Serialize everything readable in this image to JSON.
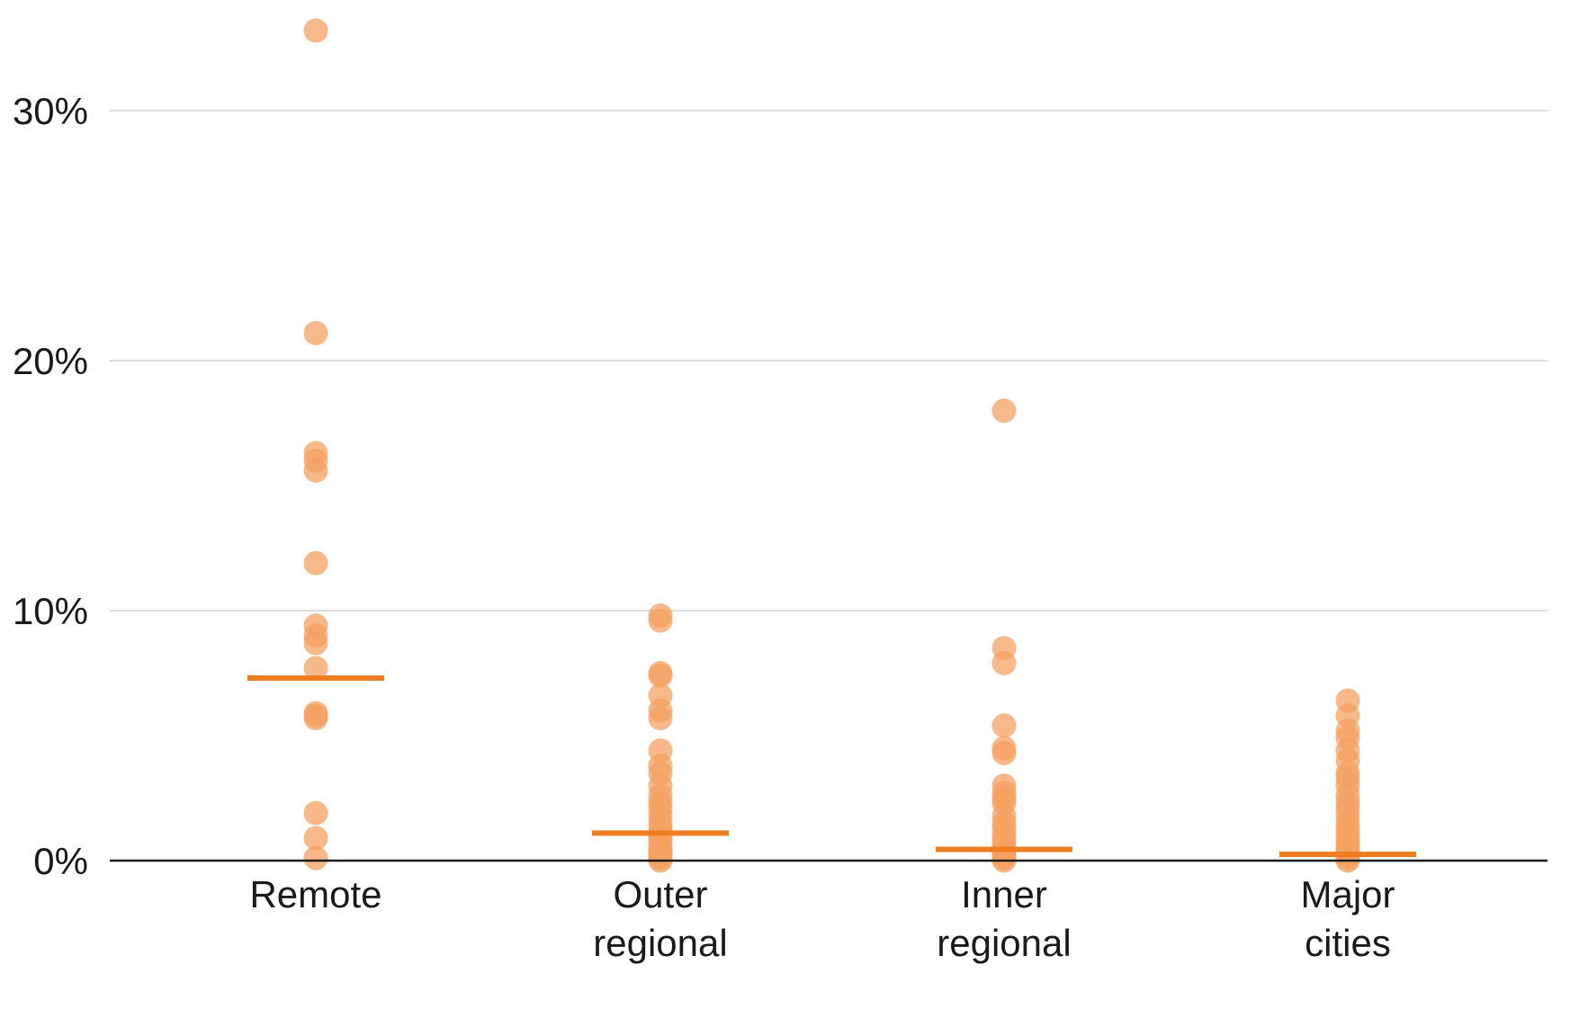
{
  "chart_data": {
    "type": "scatter",
    "title": "",
    "xlabel": "",
    "ylabel": "",
    "ylim": [
      0,
      33
    ],
    "y_ticks": [
      {
        "value": 0,
        "label": "0%"
      },
      {
        "value": 10,
        "label": "10%"
      },
      {
        "value": 20,
        "label": "20%"
      },
      {
        "value": 30,
        "label": "30%"
      }
    ],
    "grid": true,
    "legend": "none",
    "colors": {
      "point": "#f4a261",
      "mean": "#ee7d22",
      "axis": "#1a1a1a",
      "grid": "#d0d0d0"
    },
    "categories": [
      {
        "name": "Remote",
        "label_lines": [
          "Remote"
        ],
        "values": [
          33.2,
          21.1,
          16.3,
          16.0,
          15.6,
          11.9,
          9.4,
          9.0,
          8.7,
          7.7,
          5.9,
          5.8,
          5.7,
          1.9,
          0.9,
          0.1
        ],
        "mean": 7.3
      },
      {
        "name": "Outer regional",
        "label_lines": [
          "Outer",
          "regional"
        ],
        "values": [
          9.8,
          9.6,
          7.5,
          7.4,
          6.6,
          6.0,
          5.7,
          4.4,
          3.8,
          3.5,
          3.0,
          2.6,
          2.3,
          2.1,
          1.8,
          1.5,
          1.3,
          1.1,
          0.9,
          0.7,
          0.5,
          0.4,
          0.3,
          0.2,
          0.1,
          0.0
        ],
        "mean": 1.1
      },
      {
        "name": "Inner regional",
        "label_lines": [
          "Inner",
          "regional"
        ],
        "values": [
          18.0,
          8.5,
          7.9,
          5.4,
          4.5,
          4.3,
          3.0,
          2.7,
          2.5,
          2.3,
          1.8,
          1.5,
          1.3,
          1.0,
          0.8,
          0.6,
          0.4,
          0.3,
          0.2,
          0.1,
          0.0
        ],
        "mean": 0.45
      },
      {
        "name": "Major cities",
        "label_lines": [
          "Major",
          "cities"
        ],
        "values": [
          6.4,
          5.8,
          5.2,
          4.9,
          4.4,
          4.0,
          3.5,
          3.3,
          3.0,
          2.6,
          2.3,
          2.1,
          1.8,
          1.5,
          1.3,
          1.1,
          0.9,
          0.7,
          0.5,
          0.4,
          0.3,
          0.2,
          0.1,
          0.0
        ],
        "mean": 0.25
      }
    ]
  }
}
